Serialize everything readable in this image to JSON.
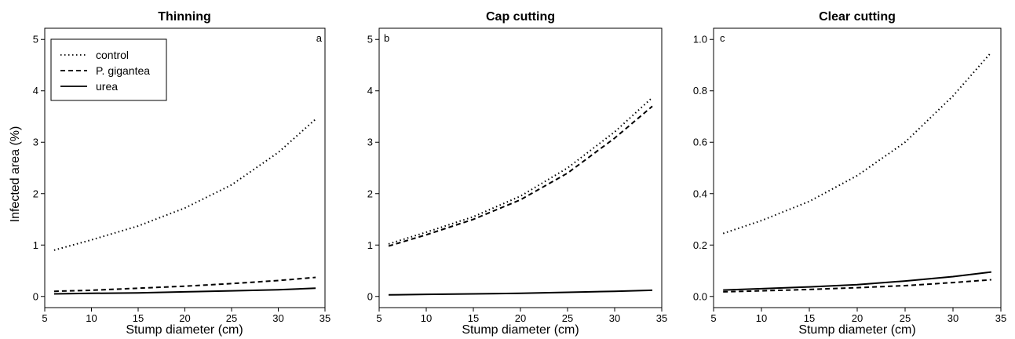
{
  "figure": {
    "ylabel": "Infected area (%)"
  },
  "legend": {
    "entries": [
      {
        "label": "control",
        "style": "dotted"
      },
      {
        "label": "P. gigantea",
        "style": "dashed"
      },
      {
        "label": "urea",
        "style": "solid"
      }
    ]
  },
  "chart_data": [
    {
      "type": "line",
      "title": "Thinning",
      "panel_letter": "a",
      "xlabel": "Stump diameter (cm)",
      "ylabel": "Infected area (%)",
      "xlim": [
        5,
        35
      ],
      "ylim": [
        0,
        5
      ],
      "xticks": [
        5,
        10,
        15,
        20,
        25,
        30,
        35
      ],
      "yticks": [
        0,
        1,
        2,
        3,
        4,
        5
      ],
      "ytick_labels": [
        "0",
        "1",
        "2",
        "3",
        "4",
        "5"
      ],
      "legend_position": "top-left",
      "series": [
        {
          "name": "control",
          "style": "dotted",
          "x": [
            6,
            10,
            15,
            20,
            25,
            30,
            34
          ],
          "y": [
            0.9,
            1.1,
            1.37,
            1.72,
            2.17,
            2.8,
            3.45
          ]
        },
        {
          "name": "P. gigantea",
          "style": "dashed",
          "x": [
            6,
            10,
            15,
            20,
            25,
            30,
            34
          ],
          "y": [
            0.1,
            0.12,
            0.16,
            0.2,
            0.25,
            0.31,
            0.37
          ]
        },
        {
          "name": "urea",
          "style": "solid",
          "x": [
            6,
            10,
            15,
            20,
            25,
            30,
            34
          ],
          "y": [
            0.05,
            0.06,
            0.07,
            0.09,
            0.11,
            0.13,
            0.16
          ]
        }
      ]
    },
    {
      "type": "line",
      "title": "Cap cutting",
      "panel_letter": "b",
      "xlabel": "Stump diameter (cm)",
      "xlim": [
        5,
        35
      ],
      "ylim": [
        0,
        5
      ],
      "xticks": [
        5,
        10,
        15,
        20,
        25,
        30,
        35
      ],
      "yticks": [
        0,
        1,
        2,
        3,
        4,
        5
      ],
      "ytick_labels": [
        "0",
        "1",
        "2",
        "3",
        "4",
        "5"
      ],
      "series": [
        {
          "name": "control",
          "style": "dotted",
          "x": [
            6,
            10,
            15,
            20,
            25,
            30,
            34
          ],
          "y": [
            1.02,
            1.25,
            1.55,
            1.95,
            2.5,
            3.2,
            3.87
          ]
        },
        {
          "name": "P. gigantea",
          "style": "dashed",
          "x": [
            6,
            10,
            15,
            20,
            25,
            30,
            34
          ],
          "y": [
            0.98,
            1.2,
            1.5,
            1.88,
            2.4,
            3.08,
            3.7
          ]
        },
        {
          "name": "urea",
          "style": "solid",
          "x": [
            6,
            10,
            15,
            20,
            25,
            30,
            34
          ],
          "y": [
            0.03,
            0.04,
            0.05,
            0.06,
            0.08,
            0.1,
            0.12
          ]
        }
      ]
    },
    {
      "type": "line",
      "title": "Clear cutting",
      "panel_letter": "c",
      "xlabel": "Stump diameter (cm)",
      "xlim": [
        5,
        35
      ],
      "ylim": [
        0,
        1.0
      ],
      "xticks": [
        5,
        10,
        15,
        20,
        25,
        30,
        35
      ],
      "yticks": [
        0,
        0.2,
        0.4,
        0.6,
        0.8,
        1.0
      ],
      "ytick_labels": [
        "0.0",
        "0.2",
        "0.4",
        "0.6",
        "0.8",
        "1.0"
      ],
      "series": [
        {
          "name": "control",
          "style": "dotted",
          "x": [
            6,
            10,
            15,
            20,
            25,
            30,
            34
          ],
          "y": [
            0.245,
            0.295,
            0.37,
            0.47,
            0.6,
            0.78,
            0.95
          ]
        },
        {
          "name": "P. gigantea",
          "style": "dashed",
          "x": [
            6,
            10,
            15,
            20,
            25,
            30,
            34
          ],
          "y": [
            0.018,
            0.022,
            0.027,
            0.034,
            0.042,
            0.054,
            0.065
          ]
        },
        {
          "name": "urea",
          "style": "solid",
          "x": [
            6,
            10,
            15,
            20,
            25,
            30,
            34
          ],
          "y": [
            0.025,
            0.03,
            0.037,
            0.046,
            0.06,
            0.077,
            0.095
          ]
        }
      ]
    }
  ]
}
